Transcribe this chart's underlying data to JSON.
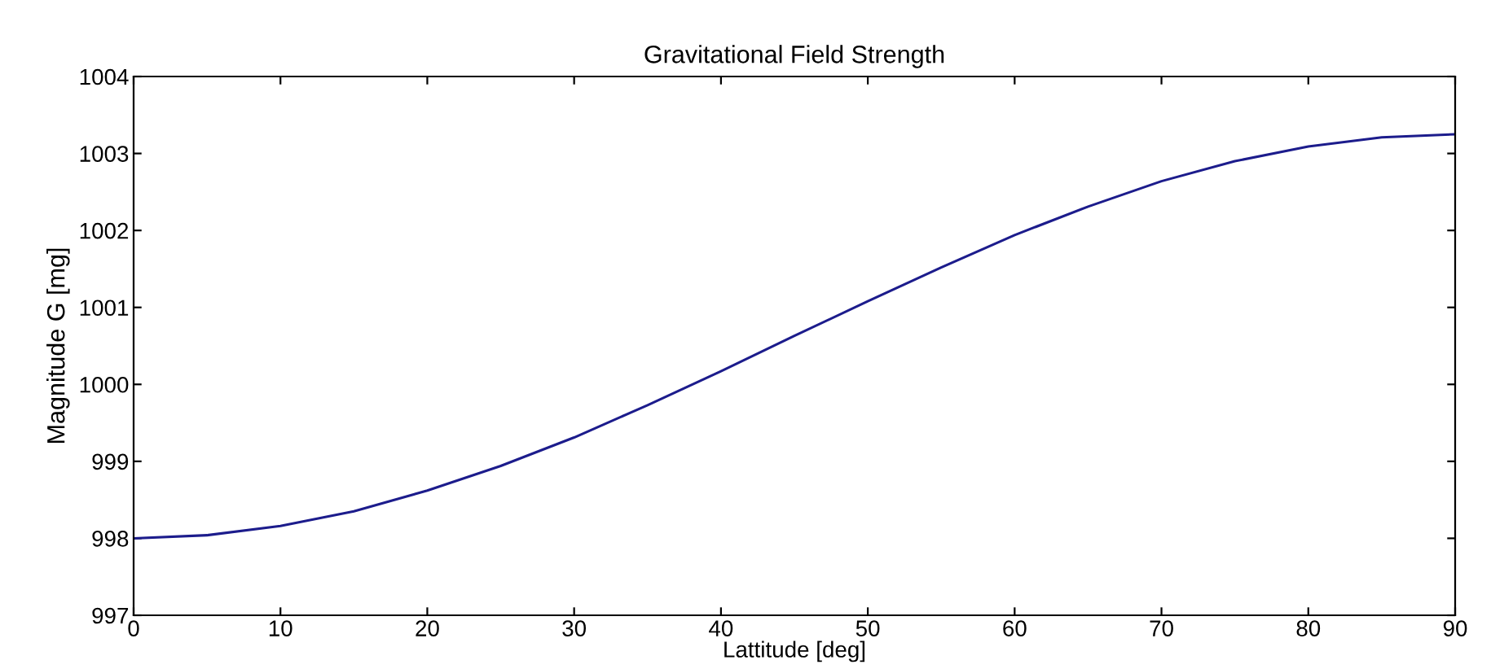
{
  "chart_data": {
    "type": "line",
    "title": "Gravitational Field Strength",
    "xlabel": "Lattitude [deg]",
    "ylabel": "Magnitude G [mg]",
    "x": [
      0,
      5,
      10,
      15,
      20,
      25,
      30,
      35,
      40,
      45,
      50,
      55,
      60,
      65,
      70,
      75,
      80,
      85,
      90
    ],
    "series": [
      {
        "color": "#1c1c8c",
        "values": [
          998.0,
          998.04,
          998.16,
          998.35,
          998.62,
          998.94,
          999.31,
          999.73,
          1000.17,
          1000.63,
          1001.08,
          1001.52,
          1001.94,
          1002.31,
          1002.64,
          1002.9,
          1003.09,
          1003.21,
          1003.25
        ]
      }
    ],
    "xlim": [
      0,
      90
    ],
    "xticks": [
      0,
      10,
      20,
      30,
      40,
      50,
      60,
      70,
      80,
      90
    ],
    "ylim": [
      997,
      1004
    ],
    "yticks": [
      997,
      998,
      999,
      1000,
      1001,
      1002,
      1003,
      1004
    ],
    "grid": false,
    "legend": false,
    "marker": "none",
    "line_style": "solid"
  }
}
